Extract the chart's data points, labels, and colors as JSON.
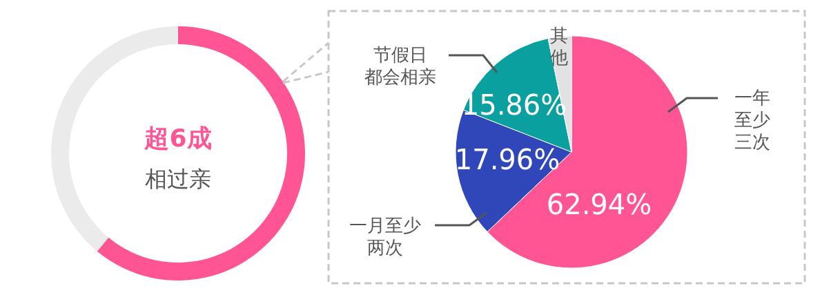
{
  "chart_data": [
    {
      "type": "donut",
      "title": "超6成",
      "subtitle": "相过亲",
      "categories": [
        null,
        null
      ],
      "values": [
        61,
        39
      ],
      "colors": [
        "#ff5595",
        "#ebebeb"
      ]
    },
    {
      "type": "pie",
      "categories": [
        "一年至少三次",
        "一月至少两次",
        "节假日都会相亲",
        "其他"
      ],
      "values": [
        62.94,
        17.96,
        15.86,
        3.24
      ],
      "colors": [
        "#ff5595",
        "#2f47b8",
        "#0aa0a0",
        "#e2e2e2"
      ],
      "value_labels": [
        "62.94%",
        "17.96%",
        "15.86%",
        null
      ]
    }
  ]
}
